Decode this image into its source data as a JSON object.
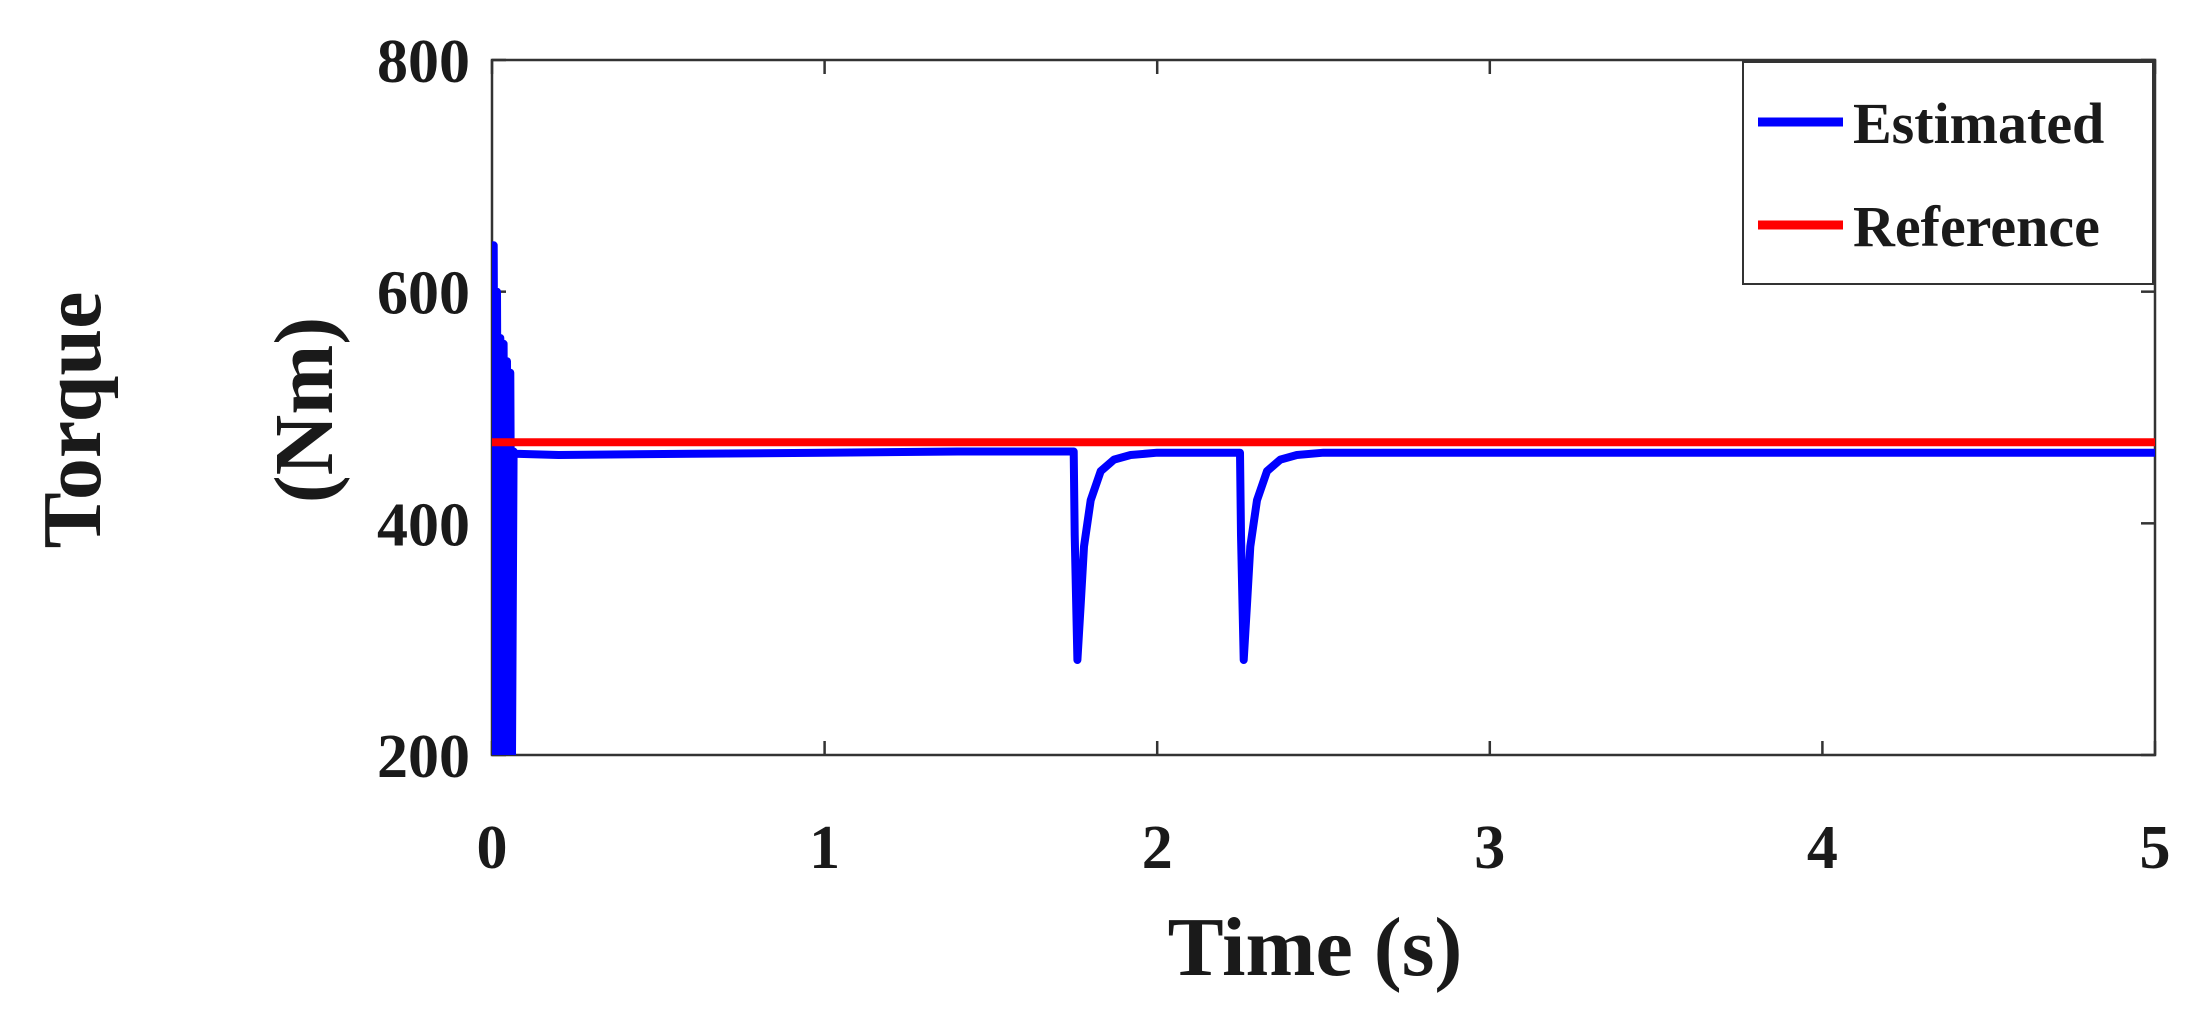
{
  "chart_data": {
    "type": "line",
    "xlabel": "Time (s)",
    "ylabel_line1": "Torque",
    "ylabel_line2": "(Nm)",
    "xlim": [
      0,
      5
    ],
    "ylim": [
      200,
      800
    ],
    "xticks": [
      0,
      1,
      2,
      3,
      4,
      5
    ],
    "yticks": [
      200,
      400,
      600,
      800
    ],
    "grid": false,
    "legend_position": "top-right",
    "series": [
      {
        "name": "Estimated",
        "color": "#0000ff",
        "x": [
          0,
          0.005,
          0.01,
          0.015,
          0.02,
          0.025,
          0.03,
          0.035,
          0.04,
          0.045,
          0.05,
          0.055,
          0.06,
          0.065,
          0.07,
          0.2,
          0.6,
          1.0,
          1.4,
          1.749,
          1.752,
          1.76,
          1.77,
          1.78,
          1.8,
          1.83,
          1.87,
          1.92,
          2.0,
          2.1,
          2.249,
          2.252,
          2.26,
          2.27,
          2.28,
          2.3,
          2.33,
          2.37,
          2.42,
          2.5,
          3.0,
          3.5,
          4.0,
          4.5,
          5.0
        ],
        "values": [
          200,
          640,
          200,
          600,
          200,
          560,
          200,
          555,
          200,
          540,
          200,
          530,
          200,
          462,
          460,
          459,
          460,
          461,
          462,
          462,
          390,
          282,
          330,
          380,
          420,
          445,
          455,
          459,
          461,
          461,
          461,
          390,
          282,
          330,
          380,
          420,
          445,
          455,
          459,
          461,
          461,
          461,
          461,
          461,
          461
        ]
      },
      {
        "name": "Reference",
        "color": "#ff0000",
        "x": [
          0,
          5
        ],
        "values": [
          470,
          470
        ]
      }
    ]
  }
}
